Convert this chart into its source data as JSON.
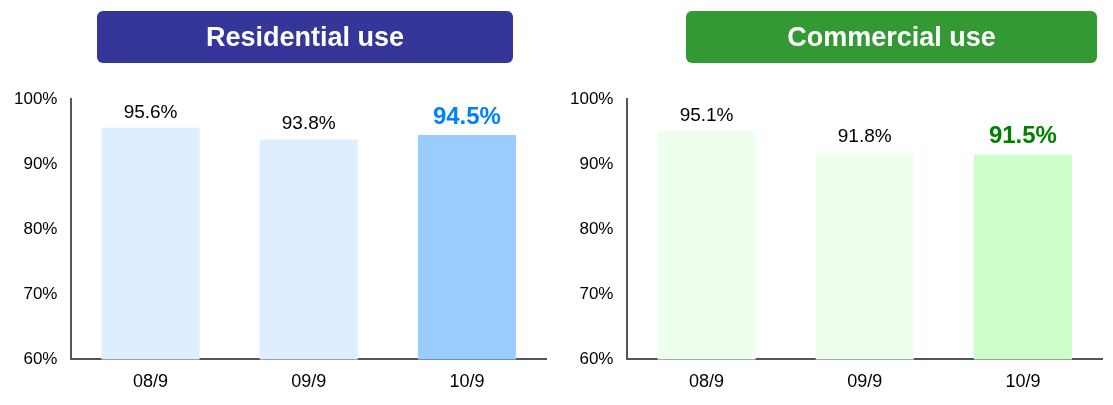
{
  "chart_data": [
    {
      "type": "bar",
      "title": "Residential use",
      "categories": [
        "08/9",
        "09/9",
        "10/9"
      ],
      "series": [
        {
          "colors": [
            "#ddeeff",
            "#ddeeff",
            "#99ccff"
          ],
          "values": [
            95.6,
            93.8,
            94.5
          ]
        }
      ],
      "ylim": [
        60,
        100
      ],
      "yticks": [
        {
          "value": 60,
          "label": "60%"
        },
        {
          "value": 70,
          "label": "70%"
        },
        {
          "value": 80,
          "label": "80%"
        },
        {
          "value": 90,
          "label": "90%"
        },
        {
          "value": 100,
          "label": "100%"
        }
      ],
      "grid": false,
      "legend": false,
      "value_labels": [
        "95.6%",
        "93.8%",
        "94.5%"
      ]
    },
    {
      "type": "bar",
      "title": "Commercial use",
      "categories": [
        "08/9",
        "09/9",
        "10/9"
      ],
      "series": [
        {
          "colors": [
            "#eeffee",
            "#eeffee",
            "#ccffcc"
          ],
          "values": [
            95.1,
            91.8,
            91.5
          ]
        }
      ],
      "ylim": [
        60,
        100
      ],
      "yticks": [
        {
          "value": 60,
          "label": "60%"
        },
        {
          "value": 70,
          "label": "70%"
        },
        {
          "value": 80,
          "label": "80%"
        },
        {
          "value": 90,
          "label": "90%"
        },
        {
          "value": 100,
          "label": "100%"
        }
      ],
      "grid": false,
      "legend": false,
      "value_labels": [
        "95.1%",
        "91.8%",
        "91.5%"
      ]
    }
  ]
}
